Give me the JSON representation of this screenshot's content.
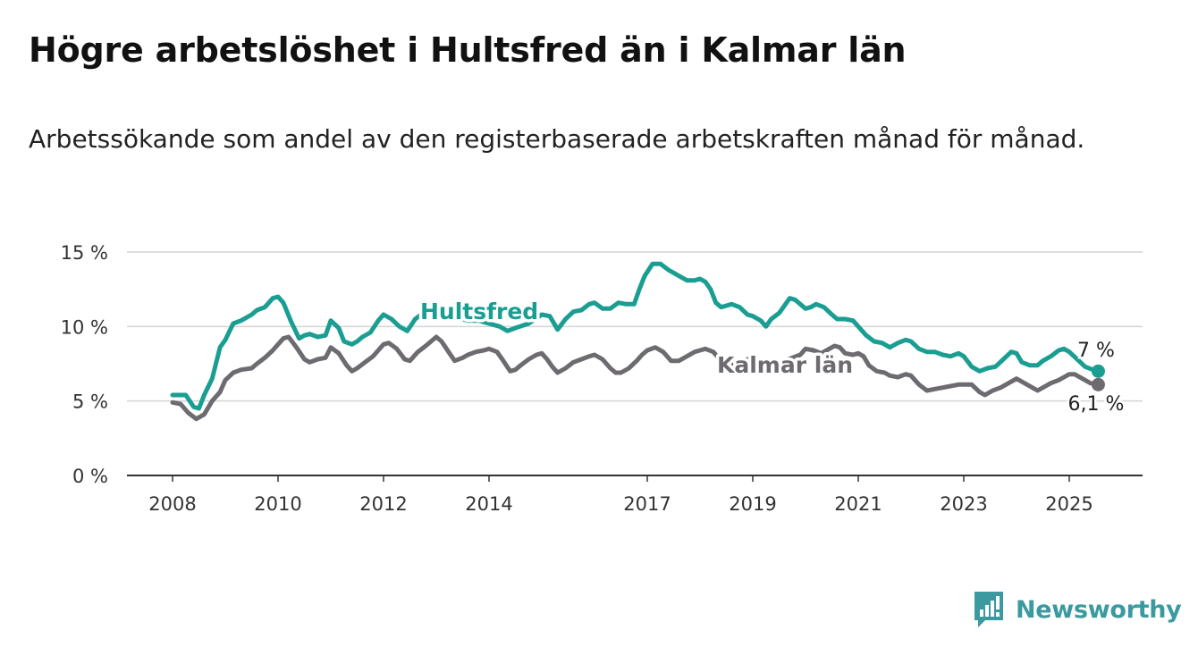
{
  "title": "Högre arbetslöshet i Hultsfred än i Kalmar län",
  "subtitle": "Arbetssökande som andel av den registerbaserade arbetskraften månad för månad.",
  "brand": {
    "name": "Newsworthy",
    "color": "#3a9aa0",
    "icon": "bar-chart-exclamation-icon"
  },
  "chart_data": {
    "type": "line",
    "ylim": [
      0,
      15
    ],
    "xlim": [
      2008,
      2025.6
    ],
    "y_ticks": [
      0,
      5,
      10,
      15
    ],
    "y_tick_labels": [
      "0 %",
      "5 %",
      "10 %",
      "15 %"
    ],
    "x_ticks": [
      2008,
      2010,
      2012,
      2014,
      2017,
      2019,
      2021,
      2023,
      2025
    ],
    "x_tick_labels": [
      "2008",
      "2010",
      "2012",
      "2014",
      "2017",
      "2019",
      "2021",
      "2023",
      "2025"
    ],
    "grid": true,
    "legend": "inline labels on lines",
    "series": [
      {
        "name": "Hultsfred",
        "color": "#1a9e92",
        "end_label": "7 %",
        "points": [
          [
            2008.0,
            5.4
          ],
          [
            2008.25,
            5.4
          ],
          [
            2008.4,
            4.6
          ],
          [
            2008.5,
            4.5
          ],
          [
            2008.6,
            5.4
          ],
          [
            2008.75,
            6.5
          ],
          [
            2008.9,
            8.6
          ],
          [
            2009.0,
            9.1
          ],
          [
            2009.15,
            10.2
          ],
          [
            2009.3,
            10.4
          ],
          [
            2009.5,
            10.8
          ],
          [
            2009.6,
            11.1
          ],
          [
            2009.75,
            11.3
          ],
          [
            2009.9,
            11.9
          ],
          [
            2010.0,
            12.0
          ],
          [
            2010.1,
            11.6
          ],
          [
            2010.25,
            10.3
          ],
          [
            2010.4,
            9.2
          ],
          [
            2010.5,
            9.4
          ],
          [
            2010.6,
            9.5
          ],
          [
            2010.75,
            9.3
          ],
          [
            2010.9,
            9.4
          ],
          [
            2011.0,
            10.4
          ],
          [
            2011.15,
            9.9
          ],
          [
            2011.25,
            9.0
          ],
          [
            2011.4,
            8.8
          ],
          [
            2011.5,
            9.0
          ],
          [
            2011.6,
            9.3
          ],
          [
            2011.75,
            9.6
          ],
          [
            2011.9,
            10.4
          ],
          [
            2012.0,
            10.8
          ],
          [
            2012.15,
            10.5
          ],
          [
            2012.3,
            10.0
          ],
          [
            2012.45,
            9.7
          ],
          [
            2012.6,
            10.5
          ],
          [
            2012.75,
            10.9
          ],
          [
            2012.9,
            11.0
          ],
          [
            2013.0,
            11.1
          ],
          [
            2013.2,
            10.8
          ],
          [
            2013.4,
            10.6
          ],
          [
            2013.6,
            10.4
          ],
          [
            2013.8,
            10.4
          ],
          [
            2014.0,
            10.2
          ],
          [
            2014.2,
            10.0
          ],
          [
            2014.35,
            9.7
          ],
          [
            2014.5,
            9.9
          ],
          [
            2014.75,
            10.2
          ],
          [
            2015.0,
            10.8
          ],
          [
            2015.15,
            10.7
          ],
          [
            2015.3,
            9.8
          ],
          [
            2015.45,
            10.5
          ],
          [
            2015.6,
            11.0
          ],
          [
            2015.75,
            11.1
          ],
          [
            2015.9,
            11.5
          ],
          [
            2016.0,
            11.6
          ],
          [
            2016.15,
            11.2
          ],
          [
            2016.3,
            11.2
          ],
          [
            2016.45,
            11.6
          ],
          [
            2016.6,
            11.5
          ],
          [
            2016.75,
            11.5
          ],
          [
            2016.85,
            12.5
          ],
          [
            2016.95,
            13.4
          ],
          [
            2017.1,
            14.2
          ],
          [
            2017.25,
            14.2
          ],
          [
            2017.4,
            13.8
          ],
          [
            2017.5,
            13.6
          ],
          [
            2017.6,
            13.4
          ],
          [
            2017.75,
            13.1
          ],
          [
            2017.9,
            13.1
          ],
          [
            2018.0,
            13.2
          ],
          [
            2018.1,
            13.0
          ],
          [
            2018.2,
            12.5
          ],
          [
            2018.3,
            11.6
          ],
          [
            2018.4,
            11.3
          ],
          [
            2018.5,
            11.4
          ],
          [
            2018.6,
            11.5
          ],
          [
            2018.75,
            11.3
          ],
          [
            2018.9,
            10.8
          ],
          [
            2019.0,
            10.7
          ],
          [
            2019.15,
            10.4
          ],
          [
            2019.25,
            10.0
          ],
          [
            2019.35,
            10.5
          ],
          [
            2019.5,
            10.9
          ],
          [
            2019.6,
            11.4
          ],
          [
            2019.7,
            11.9
          ],
          [
            2019.8,
            11.8
          ],
          [
            2019.9,
            11.5
          ],
          [
            2020.0,
            11.2
          ],
          [
            2020.1,
            11.3
          ],
          [
            2020.2,
            11.5
          ],
          [
            2020.35,
            11.3
          ],
          [
            2020.5,
            10.8
          ],
          [
            2020.6,
            10.5
          ],
          [
            2020.75,
            10.5
          ],
          [
            2020.9,
            10.4
          ],
          [
            2021.0,
            10.0
          ],
          [
            2021.15,
            9.4
          ],
          [
            2021.3,
            9.0
          ],
          [
            2021.45,
            8.9
          ],
          [
            2021.6,
            8.6
          ],
          [
            2021.75,
            8.9
          ],
          [
            2021.9,
            9.1
          ],
          [
            2022.0,
            9.0
          ],
          [
            2022.15,
            8.5
          ],
          [
            2022.3,
            8.3
          ],
          [
            2022.45,
            8.3
          ],
          [
            2022.6,
            8.1
          ],
          [
            2022.75,
            8.0
          ],
          [
            2022.9,
            8.2
          ],
          [
            2023.0,
            8.0
          ],
          [
            2023.15,
            7.3
          ],
          [
            2023.3,
            7.0
          ],
          [
            2023.45,
            7.2
          ],
          [
            2023.6,
            7.3
          ],
          [
            2023.75,
            7.8
          ],
          [
            2023.9,
            8.3
          ],
          [
            2024.0,
            8.2
          ],
          [
            2024.1,
            7.6
          ],
          [
            2024.25,
            7.4
          ],
          [
            2024.4,
            7.4
          ],
          [
            2024.5,
            7.7
          ],
          [
            2024.65,
            8.0
          ],
          [
            2024.8,
            8.4
          ],
          [
            2024.9,
            8.5
          ],
          [
            2025.0,
            8.3
          ],
          [
            2025.15,
            7.8
          ],
          [
            2025.3,
            7.3
          ],
          [
            2025.45,
            7.1
          ],
          [
            2025.55,
            7.0
          ]
        ]
      },
      {
        "name": "Kalmar län",
        "color": "#6e6b70",
        "end_label": "6,1 %",
        "points": [
          [
            2008.0,
            4.9
          ],
          [
            2008.15,
            4.8
          ],
          [
            2008.3,
            4.2
          ],
          [
            2008.45,
            3.8
          ],
          [
            2008.6,
            4.1
          ],
          [
            2008.75,
            5.0
          ],
          [
            2008.9,
            5.6
          ],
          [
            2009.0,
            6.4
          ],
          [
            2009.15,
            6.9
          ],
          [
            2009.3,
            7.1
          ],
          [
            2009.5,
            7.2
          ],
          [
            2009.6,
            7.5
          ],
          [
            2009.75,
            7.9
          ],
          [
            2009.9,
            8.4
          ],
          [
            2010.0,
            8.8
          ],
          [
            2010.1,
            9.2
          ],
          [
            2010.2,
            9.3
          ],
          [
            2010.35,
            8.6
          ],
          [
            2010.5,
            7.8
          ],
          [
            2010.6,
            7.6
          ],
          [
            2010.75,
            7.8
          ],
          [
            2010.9,
            7.9
          ],
          [
            2011.0,
            8.6
          ],
          [
            2011.15,
            8.2
          ],
          [
            2011.3,
            7.4
          ],
          [
            2011.4,
            7.0
          ],
          [
            2011.5,
            7.2
          ],
          [
            2011.65,
            7.6
          ],
          [
            2011.8,
            8.0
          ],
          [
            2011.9,
            8.4
          ],
          [
            2012.0,
            8.8
          ],
          [
            2012.1,
            8.9
          ],
          [
            2012.25,
            8.5
          ],
          [
            2012.4,
            7.8
          ],
          [
            2012.5,
            7.7
          ],
          [
            2012.65,
            8.3
          ],
          [
            2012.8,
            8.7
          ],
          [
            2012.9,
            9.0
          ],
          [
            2013.0,
            9.3
          ],
          [
            2013.1,
            9.0
          ],
          [
            2013.25,
            8.2
          ],
          [
            2013.35,
            7.7
          ],
          [
            2013.5,
            7.9
          ],
          [
            2013.6,
            8.1
          ],
          [
            2013.75,
            8.3
          ],
          [
            2013.9,
            8.4
          ],
          [
            2014.0,
            8.5
          ],
          [
            2014.15,
            8.3
          ],
          [
            2014.25,
            7.8
          ],
          [
            2014.4,
            7.0
          ],
          [
            2014.5,
            7.1
          ],
          [
            2014.6,
            7.4
          ],
          [
            2014.75,
            7.8
          ],
          [
            2014.9,
            8.1
          ],
          [
            2015.0,
            8.2
          ],
          [
            2015.1,
            7.8
          ],
          [
            2015.2,
            7.3
          ],
          [
            2015.3,
            6.9
          ],
          [
            2015.45,
            7.2
          ],
          [
            2015.6,
            7.6
          ],
          [
            2015.75,
            7.8
          ],
          [
            2015.9,
            8.0
          ],
          [
            2016.0,
            8.1
          ],
          [
            2016.15,
            7.8
          ],
          [
            2016.3,
            7.2
          ],
          [
            2016.4,
            6.9
          ],
          [
            2016.5,
            6.9
          ],
          [
            2016.65,
            7.2
          ],
          [
            2016.8,
            7.7
          ],
          [
            2016.9,
            8.1
          ],
          [
            2017.0,
            8.4
          ],
          [
            2017.15,
            8.6
          ],
          [
            2017.3,
            8.3
          ],
          [
            2017.45,
            7.7
          ],
          [
            2017.6,
            7.7
          ],
          [
            2017.75,
            8.0
          ],
          [
            2017.9,
            8.3
          ],
          [
            2018.0,
            8.4
          ],
          [
            2018.1,
            8.5
          ],
          [
            2018.25,
            8.3
          ],
          [
            2018.35,
            7.9
          ],
          [
            2018.5,
            7.6
          ],
          [
            2018.6,
            7.4
          ],
          [
            2018.75,
            7.5
          ],
          [
            2018.9,
            7.8
          ],
          [
            2019.0,
            7.9
          ],
          [
            2019.15,
            7.6
          ],
          [
            2019.3,
            7.2
          ],
          [
            2019.45,
            7.3
          ],
          [
            2019.6,
            7.7
          ],
          [
            2019.75,
            7.9
          ],
          [
            2019.9,
            8.1
          ],
          [
            2020.0,
            8.5
          ],
          [
            2020.15,
            8.4
          ],
          [
            2020.3,
            8.2
          ],
          [
            2020.45,
            8.5
          ],
          [
            2020.55,
            8.7
          ],
          [
            2020.65,
            8.6
          ],
          [
            2020.75,
            8.2
          ],
          [
            2020.9,
            8.1
          ],
          [
            2021.0,
            8.2
          ],
          [
            2021.1,
            8.0
          ],
          [
            2021.2,
            7.4
          ],
          [
            2021.35,
            7.0
          ],
          [
            2021.5,
            6.9
          ],
          [
            2021.6,
            6.7
          ],
          [
            2021.75,
            6.6
          ],
          [
            2021.9,
            6.8
          ],
          [
            2022.0,
            6.7
          ],
          [
            2022.15,
            6.1
          ],
          [
            2022.3,
            5.7
          ],
          [
            2022.45,
            5.8
          ],
          [
            2022.6,
            5.9
          ],
          [
            2022.75,
            6.0
          ],
          [
            2022.9,
            6.1
          ],
          [
            2023.0,
            6.1
          ],
          [
            2023.15,
            6.1
          ],
          [
            2023.3,
            5.6
          ],
          [
            2023.4,
            5.4
          ],
          [
            2023.55,
            5.7
          ],
          [
            2023.7,
            5.9
          ],
          [
            2023.85,
            6.2
          ],
          [
            2024.0,
            6.5
          ],
          [
            2024.15,
            6.2
          ],
          [
            2024.3,
            5.9
          ],
          [
            2024.4,
            5.7
          ],
          [
            2024.5,
            5.9
          ],
          [
            2024.65,
            6.2
          ],
          [
            2024.8,
            6.4
          ],
          [
            2024.9,
            6.6
          ],
          [
            2025.0,
            6.8
          ],
          [
            2025.1,
            6.8
          ],
          [
            2025.25,
            6.5
          ],
          [
            2025.4,
            6.2
          ],
          [
            2025.55,
            6.1
          ]
        ]
      }
    ]
  }
}
